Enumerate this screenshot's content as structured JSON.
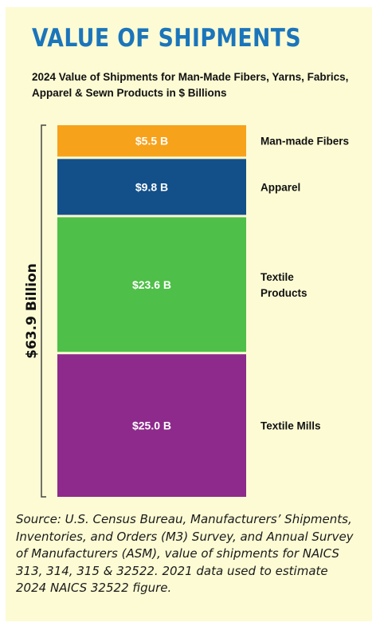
{
  "title": "VALUE OF SHIPMENTS",
  "subtitle": "2024 Value of Shipments for Man-Made Fibers, Yarns, Fabrics, Apparel & Sewn Products in $ Billions",
  "source": "Source: U.S. Census Bureau, Manufacturers’ Shipments, Inventories, and Orders (M3) Survey, and Annual Survey of Manufacturers (ASM), value of shipments for NAICS 313, 314, 315 & 32522. 2021 data used to estimate 2024 NAICS 32522 figure.",
  "colors": {
    "title": "#1b75bb",
    "background": "#fcfbd4"
  },
  "chart_data": {
    "type": "bar",
    "stacked": true,
    "unit": "$ Billions",
    "total_label": "$63.9 Billion",
    "total": 63.9,
    "categories": [
      "Man-made Fibers",
      "Apparel",
      "Textile Products",
      "Textile Mills"
    ],
    "category_labels": [
      [
        "Man-made Fibers"
      ],
      [
        "Apparel"
      ],
      [
        "Textile",
        "Products"
      ],
      [
        "Textile Mills"
      ]
    ],
    "values": [
      5.5,
      9.8,
      23.6,
      25.0
    ],
    "value_labels": [
      "$5.5 B",
      "$9.8 B",
      "$23.6 B",
      "$25.0 B"
    ],
    "colors": [
      "#f7a21b",
      "#13508a",
      "#4ebf48",
      "#8e2a8c"
    ],
    "legend": "right of bar"
  }
}
